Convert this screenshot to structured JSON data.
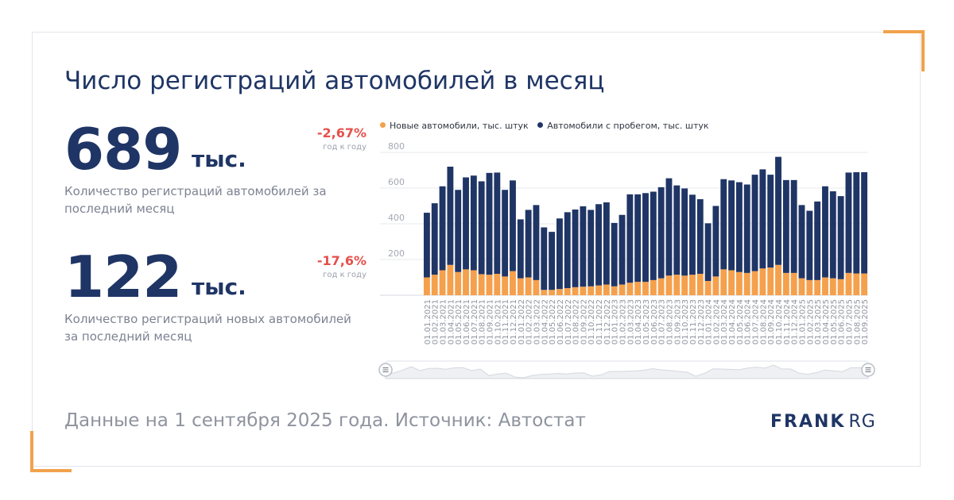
{
  "title": "Число регистраций автомобилей в месяц",
  "kpis": [
    {
      "value": "689",
      "unit": "тыс.",
      "change": "-2,67%",
      "change_note": "год к году",
      "description": "Количество регистраций автомобилей за последний месяц"
    },
    {
      "value": "122",
      "unit": "тыс.",
      "change": "-17,6%",
      "change_note": "год к году",
      "description": "Количество регистраций новых автомобилей за последний месяц"
    }
  ],
  "footer": "Данные на 1 сентября 2025 года. Источник: Автостат",
  "logo": {
    "bold": "FRANK",
    "light": "RG"
  },
  "colors": {
    "new": "#f5a04c",
    "used": "#1f3565",
    "accent": "#f2a24c",
    "negative": "#e5504b"
  },
  "icons": {
    "slider_handle": "grip-handle-icon"
  },
  "chart_data": {
    "type": "bar",
    "stacked": true,
    "ylim": [
      0,
      800
    ],
    "yticks": [
      200,
      400,
      600,
      800
    ],
    "grid": true,
    "legend_position": "top",
    "categories": [
      "01.01.2021",
      "01.02.2021",
      "01.03.2021",
      "01.04.2021",
      "01.05.2021",
      "01.06.2021",
      "01.07.2021",
      "01.08.2021",
      "01.09.2021",
      "01.10.2021",
      "01.11.2021",
      "01.12.2021",
      "01.01.2022",
      "01.02.2022",
      "01.03.2022",
      "01.04.2022",
      "01.05.2022",
      "01.06.2022",
      "01.07.2022",
      "01.08.2022",
      "01.09.2022",
      "01.10.2022",
      "01.11.2022",
      "01.12.2022",
      "01.01.2023",
      "01.02.2023",
      "01.03.2023",
      "01.04.2023",
      "01.05.2023",
      "01.06.2023",
      "01.07.2023",
      "01.08.2023",
      "01.09.2023",
      "01.10.2023",
      "01.11.2023",
      "01.12.2023",
      "01.01.2024",
      "01.02.2024",
      "01.03.2024",
      "01.04.2024",
      "01.05.2024",
      "01.06.2024",
      "01.07.2024",
      "01.08.2024",
      "01.09.2024",
      "01.10.2024",
      "01.11.2024",
      "01.12.2024",
      "01.01.2025",
      "01.02.2025",
      "01.03.2025",
      "01.04.2025",
      "01.05.2025",
      "01.06.2025",
      "01.07.2025",
      "01.08.2025",
      "01.09.2025"
    ],
    "series": [
      {
        "name": "Новые автомобили, тыс. штук",
        "values": [
          100,
          115,
          140,
          170,
          130,
          145,
          140,
          118,
          115,
          120,
          105,
          135,
          95,
          100,
          85,
          30,
          30,
          35,
          40,
          45,
          48,
          50,
          55,
          60,
          50,
          60,
          70,
          75,
          75,
          85,
          95,
          110,
          115,
          110,
          115,
          120,
          80,
          105,
          145,
          140,
          130,
          125,
          135,
          150,
          155,
          170,
          125,
          125,
          95,
          85,
          85,
          100,
          95,
          90,
          125,
          122,
          122
        ]
      },
      {
        "name": "Автомобили с пробегом, тыс. штук",
        "values": [
          362,
          400,
          470,
          550,
          460,
          515,
          530,
          520,
          570,
          567,
          485,
          508,
          330,
          378,
          420,
          350,
          325,
          395,
          425,
          435,
          450,
          428,
          455,
          460,
          355,
          390,
          495,
          490,
          497,
          495,
          510,
          545,
          500,
          488,
          448,
          418,
          323,
          395,
          505,
          503,
          503,
          495,
          540,
          555,
          520,
          605,
          520,
          520,
          410,
          388,
          440,
          510,
          487,
          465,
          562,
          567,
          567
        ]
      }
    ]
  }
}
